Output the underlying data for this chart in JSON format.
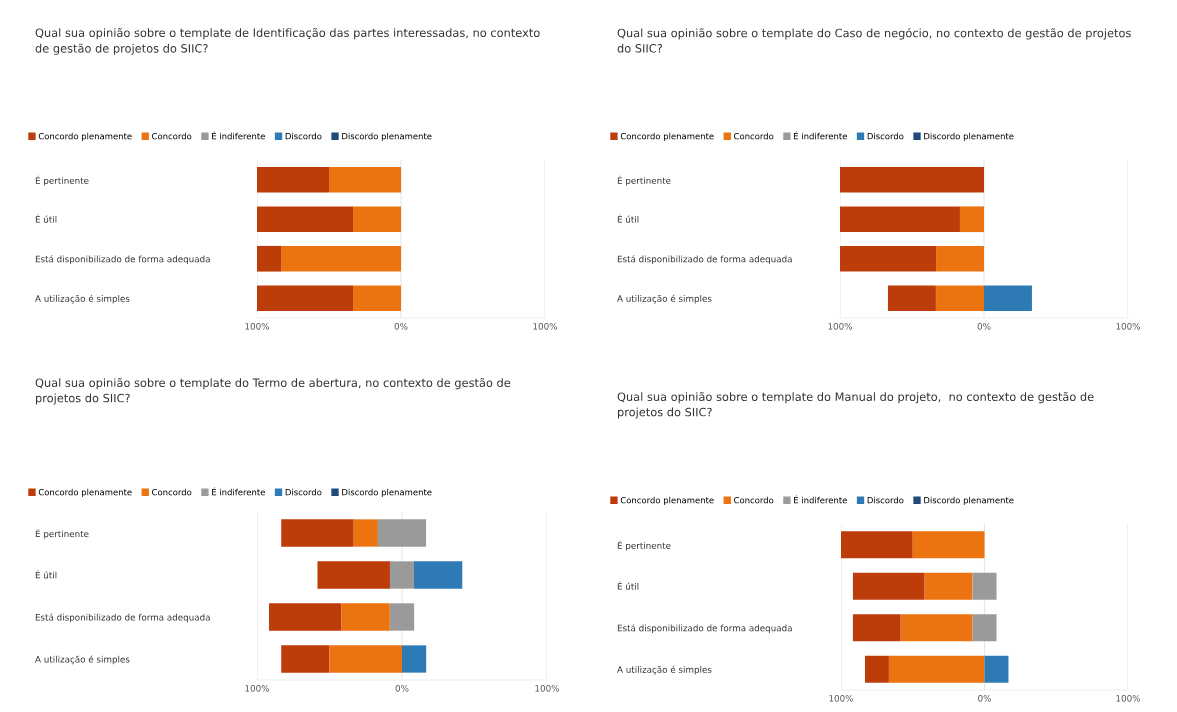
{
  "chart_data": [
    {
      "type": "bar",
      "orientation": "horizontal",
      "title": "Qual sua opinião sobre o template de Identificação das partes interessadas, no contexto de gestão de projetos do SIIC?",
      "categories": [
        "É pertinente",
        "É útil",
        "Está disponibilizado de forma adequada",
        "A utilização é simples"
      ],
      "series": [
        {
          "name": "Concordo plenamente",
          "color": "#bd3d0a",
          "values": [
            50,
            66.7,
            16.7,
            66.7
          ],
          "base": [
            -100,
            -100,
            -100,
            -100
          ]
        },
        {
          "name": "Concordo",
          "color": "#eb7310",
          "values": [
            50,
            33.3,
            83.3,
            33.3
          ],
          "base": [
            -50,
            -33.3,
            -83.3,
            -33.3
          ]
        },
        {
          "name": "É indiferente",
          "color": "#9a9a9a",
          "values": [
            null,
            null,
            null,
            null
          ],
          "base": [
            null,
            null,
            null,
            null
          ]
        },
        {
          "name": "Discordo",
          "color": "#2e7ab5",
          "values": [
            null,
            null,
            null,
            null
          ],
          "base": [
            null,
            null,
            null,
            null
          ]
        },
        {
          "name": "Discordo plenamente",
          "color": "#1f4a7a",
          "values": [
            null,
            null,
            null,
            null
          ],
          "base": [
            null,
            null,
            null,
            null
          ]
        }
      ],
      "xlim": [
        -100,
        100
      ],
      "xticks": [
        {
          "value": -100,
          "label": "100%"
        },
        {
          "value": 0,
          "label": "0%"
        },
        {
          "value": 100,
          "label": "100%"
        }
      ],
      "grid": "x",
      "legend": "top left"
    },
    {
      "type": "bar",
      "orientation": "horizontal",
      "title": "Qual sua opinião sobre o template do Caso de negócio, no contexto de gestão de projetos do SIIC?",
      "categories": [
        "É pertinente",
        "É útil",
        "Está disponibilizado de forma adequada",
        "A utilização é simples"
      ],
      "series": [
        {
          "name": "Concordo plenamente",
          "color": "#bd3d0a",
          "values": [
            100,
            83.3,
            66.7,
            33.3
          ],
          "base": [
            -100,
            -100,
            -100,
            -66.7
          ]
        },
        {
          "name": "Concordo",
          "color": "#eb7310",
          "values": [
            null,
            16.7,
            33.3,
            33.3
          ],
          "base": [
            null,
            -16.7,
            -33.3,
            -33.3
          ]
        },
        {
          "name": "É indiferente",
          "color": "#9a9a9a",
          "values": [
            null,
            null,
            null,
            null
          ],
          "base": [
            null,
            null,
            null,
            null
          ]
        },
        {
          "name": "Discordo",
          "color": "#2e7ab5",
          "values": [
            null,
            null,
            null,
            33.3
          ],
          "base": [
            null,
            null,
            null,
            0
          ]
        },
        {
          "name": "Discordo plenamente",
          "color": "#1f4a7a",
          "values": [
            null,
            null,
            null,
            null
          ],
          "base": [
            null,
            null,
            null,
            null
          ]
        }
      ],
      "xlim": [
        -100,
        100
      ],
      "xticks": [
        {
          "value": -100,
          "label": "100%"
        },
        {
          "value": 0,
          "label": "0%"
        },
        {
          "value": 100,
          "label": "100%"
        }
      ],
      "grid": "x",
      "legend": "top left"
    },
    {
      "type": "bar",
      "orientation": "horizontal",
      "title": "Qual sua opinião sobre o template do Termo de abertura, no contexto de gestão de projetos do SIIC?",
      "categories": [
        "É pertinente",
        "É útil",
        "Está disponibilizado de forma adequada",
        "A utilização é simples"
      ],
      "series": [
        {
          "name": "Concordo plenamente",
          "color": "#bd3d0a",
          "values": [
            50,
            50,
            50,
            33.3
          ],
          "base": [
            -83.3,
            -58.3,
            -91.7,
            -83.3
          ]
        },
        {
          "name": "Concordo",
          "color": "#eb7310",
          "values": [
            16.7,
            null,
            33.3,
            50
          ],
          "base": [
            -33.3,
            null,
            -41.7,
            -50
          ]
        },
        {
          "name": "É indiferente",
          "color": "#9a9a9a",
          "values": [
            33.3,
            16.7,
            16.7,
            null
          ],
          "base": [
            -16.7,
            -8.3,
            -8.3,
            null
          ]
        },
        {
          "name": "Discordo",
          "color": "#2e7ab5",
          "values": [
            null,
            33.3,
            null,
            16.7
          ],
          "base": [
            null,
            8.3,
            null,
            0
          ]
        },
        {
          "name": "Discordo plenamente",
          "color": "#1f4a7a",
          "values": [
            null,
            null,
            null,
            null
          ],
          "base": [
            null,
            null,
            null,
            null
          ]
        }
      ],
      "xlim": [
        -100,
        100
      ],
      "xticks": [
        {
          "value": -100,
          "label": "100%"
        },
        {
          "value": 0,
          "label": "0%"
        },
        {
          "value": 100,
          "label": "100%"
        }
      ],
      "grid": "x",
      "legend": "top left"
    },
    {
      "type": "bar",
      "orientation": "horizontal",
      "title": "Qual sua opinião sobre o template do Manual do projeto,  no contexto de gestão de projetos do SIIC?",
      "categories": [
        "É pertinente",
        "É útil",
        "Está disponibilizado de forma adequada",
        "A utilização é simples"
      ],
      "series": [
        {
          "name": "Concordo plenamente",
          "color": "#bd3d0a",
          "values": [
            50,
            50,
            33.3,
            16.7
          ],
          "base": [
            -100,
            -91.7,
            -91.7,
            -83.3
          ]
        },
        {
          "name": "Concordo",
          "color": "#eb7310",
          "values": [
            50,
            33.3,
            50,
            66.7
          ],
          "base": [
            -50,
            -41.7,
            -58.3,
            -66.7
          ]
        },
        {
          "name": "É indiferente",
          "color": "#9a9a9a",
          "values": [
            null,
            16.7,
            16.7,
            null
          ],
          "base": [
            null,
            -8.3,
            -8.3,
            null
          ]
        },
        {
          "name": "Discordo",
          "color": "#2e7ab5",
          "values": [
            null,
            null,
            null,
            16.7
          ],
          "base": [
            null,
            null,
            null,
            0
          ]
        },
        {
          "name": "Discordo plenamente",
          "color": "#1f4a7a",
          "values": [
            null,
            null,
            null,
            null
          ],
          "base": [
            null,
            null,
            null,
            null
          ]
        }
      ],
      "xlim": [
        -100,
        100
      ],
      "xticks": [
        {
          "value": -100,
          "label": "100%"
        },
        {
          "value": 0,
          "label": "0%"
        },
        {
          "value": 100,
          "label": "100%"
        }
      ],
      "grid": "x",
      "legend": "top left"
    }
  ]
}
